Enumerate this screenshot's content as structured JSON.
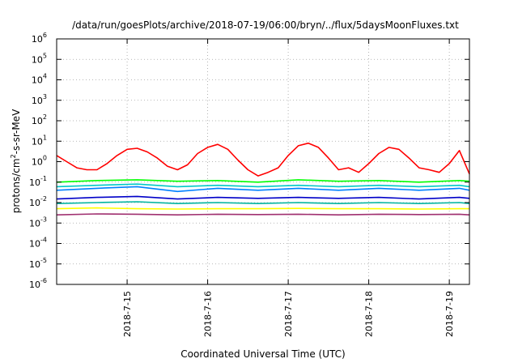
{
  "chart_data": {
    "type": "line",
    "title": "/data/run/goesPlots/archive/2018-07-19/06:00/bryn/../flux/5daysMoonFluxes.txt",
    "xlabel": "Coordinated Universal Time (UTC)",
    "ylabel": {
      "prefix": "protons/cm",
      "sup": "2",
      "suffix": "-s-sr-MeV"
    },
    "yscale": "log",
    "ylim": [
      1e-06,
      1000000.0
    ],
    "y_ticks": [
      {
        "base": "10",
        "exp": "-6",
        "value": 1e-06
      },
      {
        "base": "10",
        "exp": "-5",
        "value": 1e-05
      },
      {
        "base": "10",
        "exp": "-4",
        "value": 0.0001
      },
      {
        "base": "10",
        "exp": "-3",
        "value": 0.001
      },
      {
        "base": "10",
        "exp": "-2",
        "value": 0.01
      },
      {
        "base": "10",
        "exp": "-1",
        "value": 0.1
      },
      {
        "base": "10",
        "exp": "0",
        "value": 1
      },
      {
        "base": "10",
        "exp": "1",
        "value": 10
      },
      {
        "base": "10",
        "exp": "2",
        "value": 100
      },
      {
        "base": "10",
        "exp": "3",
        "value": 1000
      },
      {
        "base": "10",
        "exp": "4",
        "value": 10000
      },
      {
        "base": "10",
        "exp": "5",
        "value": 100000
      },
      {
        "base": "10",
        "exp": "6",
        "value": 1000000
      }
    ],
    "xlim": [
      "2018-07-14T03:00",
      "2018-07-19T06:00"
    ],
    "x_ticks": [
      {
        "label": "2018-7-15",
        "value": "2018-07-15T00:00"
      },
      {
        "label": "2018-7-16",
        "value": "2018-07-16T00:00"
      },
      {
        "label": "2018-7-17",
        "value": "2018-07-17T00:00"
      },
      {
        "label": "2018-7-18",
        "value": "2018-07-18T00:00"
      },
      {
        "label": "2018-7-19",
        "value": "2018-07-19T00:00"
      }
    ],
    "grid": true,
    "legend": "none",
    "series": [
      {
        "color": "#ff0000",
        "x": [
          "2018-07-14T03:00",
          "2018-07-14T06:00",
          "2018-07-14T09:00",
          "2018-07-14T12:00",
          "2018-07-14T15:00",
          "2018-07-14T18:00",
          "2018-07-14T21:00",
          "2018-07-15T00:00",
          "2018-07-15T03:00",
          "2018-07-15T06:00",
          "2018-07-15T09:00",
          "2018-07-15T12:00",
          "2018-07-15T15:00",
          "2018-07-15T18:00",
          "2018-07-15T21:00",
          "2018-07-16T00:00",
          "2018-07-16T03:00",
          "2018-07-16T06:00",
          "2018-07-16T09:00",
          "2018-07-16T12:00",
          "2018-07-16T15:00",
          "2018-07-16T18:00",
          "2018-07-16T21:00",
          "2018-07-17T00:00",
          "2018-07-17T03:00",
          "2018-07-17T06:00",
          "2018-07-17T09:00",
          "2018-07-17T12:00",
          "2018-07-17T15:00",
          "2018-07-17T18:00",
          "2018-07-17T21:00",
          "2018-07-18T00:00",
          "2018-07-18T03:00",
          "2018-07-18T06:00",
          "2018-07-18T09:00",
          "2018-07-18T12:00",
          "2018-07-18T15:00",
          "2018-07-18T18:00",
          "2018-07-18T21:00",
          "2018-07-19T00:00",
          "2018-07-19T03:00",
          "2018-07-19T06:00"
        ],
        "y": [
          2.0,
          1.0,
          0.5,
          0.4,
          0.4,
          0.8,
          2.0,
          4.0,
          4.5,
          3.0,
          1.5,
          0.6,
          0.4,
          0.7,
          2.5,
          5.0,
          7.0,
          4.0,
          1.2,
          0.4,
          0.2,
          0.3,
          0.5,
          2.0,
          6.0,
          8.0,
          5.0,
          1.5,
          0.4,
          0.5,
          0.3,
          0.8,
          2.5,
          5.0,
          4.0,
          1.5,
          0.5,
          0.4,
          0.3,
          0.8,
          3.5,
          0.25
        ]
      },
      {
        "color": "#00ff00",
        "x": [
          "2018-07-14T03:00",
          "2018-07-14T15:00",
          "2018-07-15T03:00",
          "2018-07-15T15:00",
          "2018-07-16T03:00",
          "2018-07-16T15:00",
          "2018-07-17T03:00",
          "2018-07-17T15:00",
          "2018-07-18T03:00",
          "2018-07-18T15:00",
          "2018-07-19T03:00",
          "2018-07-19T06:00"
        ],
        "y": [
          0.1,
          0.12,
          0.13,
          0.11,
          0.12,
          0.1,
          0.13,
          0.11,
          0.12,
          0.1,
          0.12,
          0.11
        ]
      },
      {
        "color": "#00c8c8",
        "x": [
          "2018-07-14T03:00",
          "2018-07-14T15:00",
          "2018-07-15T03:00",
          "2018-07-15T15:00",
          "2018-07-16T03:00",
          "2018-07-16T15:00",
          "2018-07-17T03:00",
          "2018-07-17T15:00",
          "2018-07-18T03:00",
          "2018-07-18T15:00",
          "2018-07-19T03:00",
          "2018-07-19T06:00"
        ],
        "y": [
          0.06,
          0.07,
          0.08,
          0.06,
          0.07,
          0.06,
          0.07,
          0.06,
          0.07,
          0.06,
          0.07,
          0.06
        ]
      },
      {
        "color": "#0080ff",
        "x": [
          "2018-07-14T03:00",
          "2018-07-14T15:00",
          "2018-07-15T03:00",
          "2018-07-15T15:00",
          "2018-07-16T03:00",
          "2018-07-16T15:00",
          "2018-07-17T03:00",
          "2018-07-17T15:00",
          "2018-07-18T03:00",
          "2018-07-18T15:00",
          "2018-07-19T03:00",
          "2018-07-19T06:00"
        ],
        "y": [
          0.04,
          0.05,
          0.06,
          0.035,
          0.05,
          0.04,
          0.05,
          0.04,
          0.05,
          0.04,
          0.05,
          0.04
        ]
      },
      {
        "color": "#0000c8",
        "x": [
          "2018-07-14T03:00",
          "2018-07-14T15:00",
          "2018-07-15T03:00",
          "2018-07-15T15:00",
          "2018-07-16T03:00",
          "2018-07-16T15:00",
          "2018-07-17T03:00",
          "2018-07-17T15:00",
          "2018-07-18T03:00",
          "2018-07-18T15:00",
          "2018-07-19T03:00",
          "2018-07-19T06:00"
        ],
        "y": [
          0.015,
          0.018,
          0.02,
          0.015,
          0.018,
          0.016,
          0.018,
          0.016,
          0.018,
          0.015,
          0.018,
          0.016
        ]
      },
      {
        "color": "#00b4a0",
        "x": [
          "2018-07-14T03:00",
          "2018-07-14T15:00",
          "2018-07-15T03:00",
          "2018-07-15T15:00",
          "2018-07-16T03:00",
          "2018-07-16T15:00",
          "2018-07-17T03:00",
          "2018-07-17T15:00",
          "2018-07-18T03:00",
          "2018-07-18T15:00",
          "2018-07-19T03:00",
          "2018-07-19T06:00"
        ],
        "y": [
          0.009,
          0.01,
          0.011,
          0.009,
          0.01,
          0.009,
          0.01,
          0.009,
          0.01,
          0.009,
          0.01,
          0.009
        ]
      },
      {
        "color": "#ffff00",
        "x": [
          "2018-07-14T03:00",
          "2018-07-14T15:00",
          "2018-07-15T03:00",
          "2018-07-15T15:00",
          "2018-07-16T03:00",
          "2018-07-16T15:00",
          "2018-07-17T03:00",
          "2018-07-17T15:00",
          "2018-07-18T03:00",
          "2018-07-18T15:00",
          "2018-07-19T03:00",
          "2018-07-19T06:00"
        ],
        "y": [
          0.005,
          0.0055,
          0.005,
          0.0048,
          0.005,
          0.005,
          0.0052,
          0.005,
          0.005,
          0.0048,
          0.005,
          0.005
        ]
      },
      {
        "color": "#a03070",
        "x": [
          "2018-07-14T03:00",
          "2018-07-14T15:00",
          "2018-07-15T03:00",
          "2018-07-15T15:00",
          "2018-07-16T03:00",
          "2018-07-16T15:00",
          "2018-07-17T03:00",
          "2018-07-17T15:00",
          "2018-07-18T03:00",
          "2018-07-18T15:00",
          "2018-07-19T03:00",
          "2018-07-19T06:00"
        ],
        "y": [
          0.0025,
          0.0028,
          0.0027,
          0.0025,
          0.0027,
          0.0026,
          0.0027,
          0.0025,
          0.0027,
          0.0026,
          0.0027,
          0.0025
        ]
      }
    ]
  }
}
